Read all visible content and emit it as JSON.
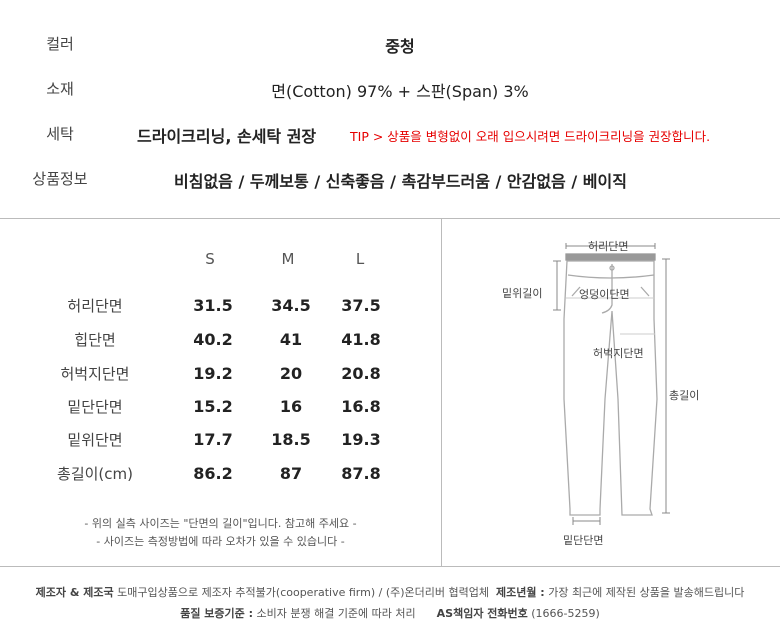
{
  "info": [
    {
      "label": "컬러",
      "value": "중청"
    },
    {
      "label": "소재",
      "value": "면(Cotton) 97% + 스판(Span) 3%"
    },
    {
      "label": "세탁",
      "value": "드라이크리닝, 손세탁 권장",
      "tip": "TIP > 상품을 변형없이 오래 입으시려면 드라이크리닝을 권장합니다."
    },
    {
      "label": "상품정보",
      "value": "비침없음 / 두께보통 / 신축좋음 / 촉감부드러움 / 안감없음 / 베이직"
    }
  ],
  "size_table": {
    "columns": [
      "S",
      "M",
      "L"
    ],
    "rows": [
      {
        "label": "허리단면",
        "values": [
          "31.5",
          "34.5",
          "37.5"
        ]
      },
      {
        "label": "힙단면",
        "values": [
          "40.2",
          "41",
          "41.8"
        ]
      },
      {
        "label": "허벅지단면",
        "values": [
          "19.2",
          "20",
          "20.8"
        ]
      },
      {
        "label": "밑단단면",
        "values": [
          "15.2",
          "16",
          "16.8"
        ]
      },
      {
        "label": "밑위단면",
        "values": [
          "17.7",
          "18.5",
          "19.3"
        ]
      },
      {
        "label": "총길이(cm)",
        "values": [
          "86.2",
          "87",
          "87.8"
        ]
      }
    ],
    "notes": [
      "- 위의 실측 사이즈는 \"단면의 길이\"입니다. 참고해 주세요 -",
      "- 사이즈는 측정방법에 따라 오차가 있을 수 있습니다 -"
    ]
  },
  "diagram": {
    "waist": "허리단면",
    "rise": "밑위길이",
    "hip": "엉덩이단면",
    "thigh": "허벅지단면",
    "length": "총길이",
    "hem": "밑단단면"
  },
  "footer": {
    "maker_label": "제조자 & 제조국",
    "maker_value": "도매구입상품으로 제조자 추적불가(cooperative firm) / (주)온더리버 협력업체",
    "date_label": "제조년월 :",
    "date_value": "가장 최근에 제작된 상품을 발송해드립니다",
    "quality_label": "품질 보증기준 :",
    "quality_value": "소비자 분쟁 해결 기준에 따라 처리",
    "as_label": "AS책임자 전화번호",
    "as_value": "(1666-5259)"
  },
  "colors": {
    "tip": "#e60000",
    "line": "#bbbbbb"
  }
}
